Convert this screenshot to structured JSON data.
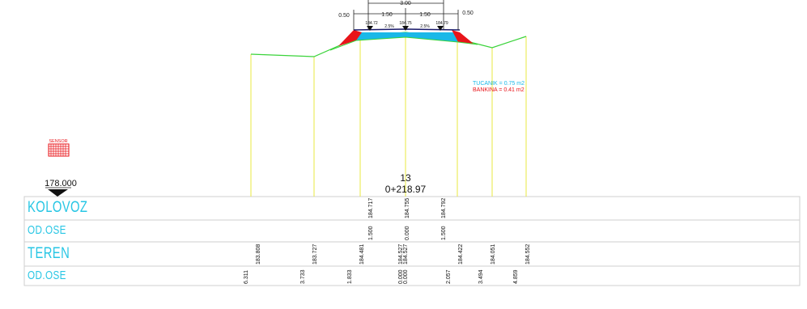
{
  "section": {
    "number": "13",
    "station": "0+218.97",
    "datum": "178.000"
  },
  "legend": {
    "tucanik": "TUCANIK = 0.75 m2",
    "bankina": "BANKINA = 0.41 m2",
    "tucanik_color": "#19b8e8",
    "bankina_color": "#e8141a"
  },
  "dimensions": {
    "total_width": "3.00",
    "half_left": "1.50",
    "half_right": "1.50",
    "shoulder_left": "0.50",
    "shoulder_right": "0.50",
    "elev_left": "184.72",
    "elev_center": "184.75",
    "elev_right": "184.79",
    "slope_left": "2.5%",
    "slope_right": "2.5%"
  },
  "sensor_label": "SENSOR",
  "rows": [
    {
      "label": "KOLOVOZ",
      "color": "#27c6e4"
    },
    {
      "label": "OD.OSE",
      "color": "#27c6e4"
    },
    {
      "label": "TEREN",
      "color": "#27c6e4"
    },
    {
      "label": "OD.OSE",
      "color": "#27c6e4"
    }
  ],
  "kolovoz_elev": [
    "184.717",
    "184.755",
    "184.792"
  ],
  "kolovoz_offsets": [
    "1.500",
    "0.000",
    "1.500"
  ],
  "teren_elev": [
    "183.808",
    "183.727",
    "184.481",
    "184.527",
    "184.527",
    "184.422",
    "184.051",
    "184.552"
  ],
  "teren_offsets": [
    "6.311",
    "3.733",
    "1.833",
    "0.000",
    "0.000",
    "2.057",
    "3.494",
    "4.859"
  ]
}
